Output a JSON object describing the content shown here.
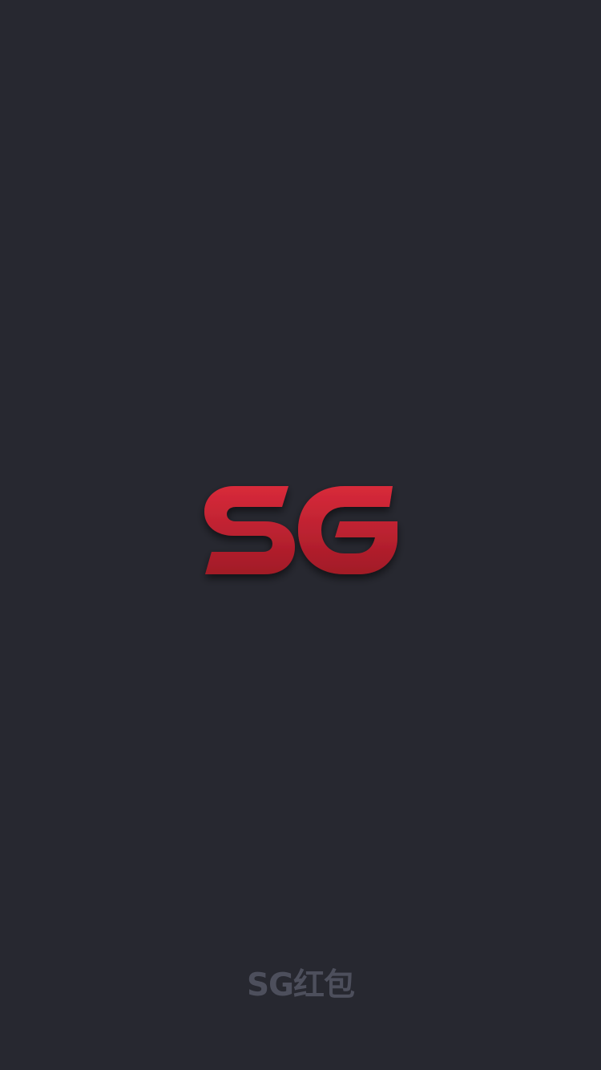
{
  "splash": {
    "logo": {
      "text": "SG",
      "icon": "sg-logo-mark",
      "gradient_top": "#d82a3a",
      "gradient_bottom": "#a11a27"
    },
    "footer_label": "SG红包",
    "colors": {
      "background": "#272830",
      "footer_text": "#4d4f5c"
    }
  }
}
